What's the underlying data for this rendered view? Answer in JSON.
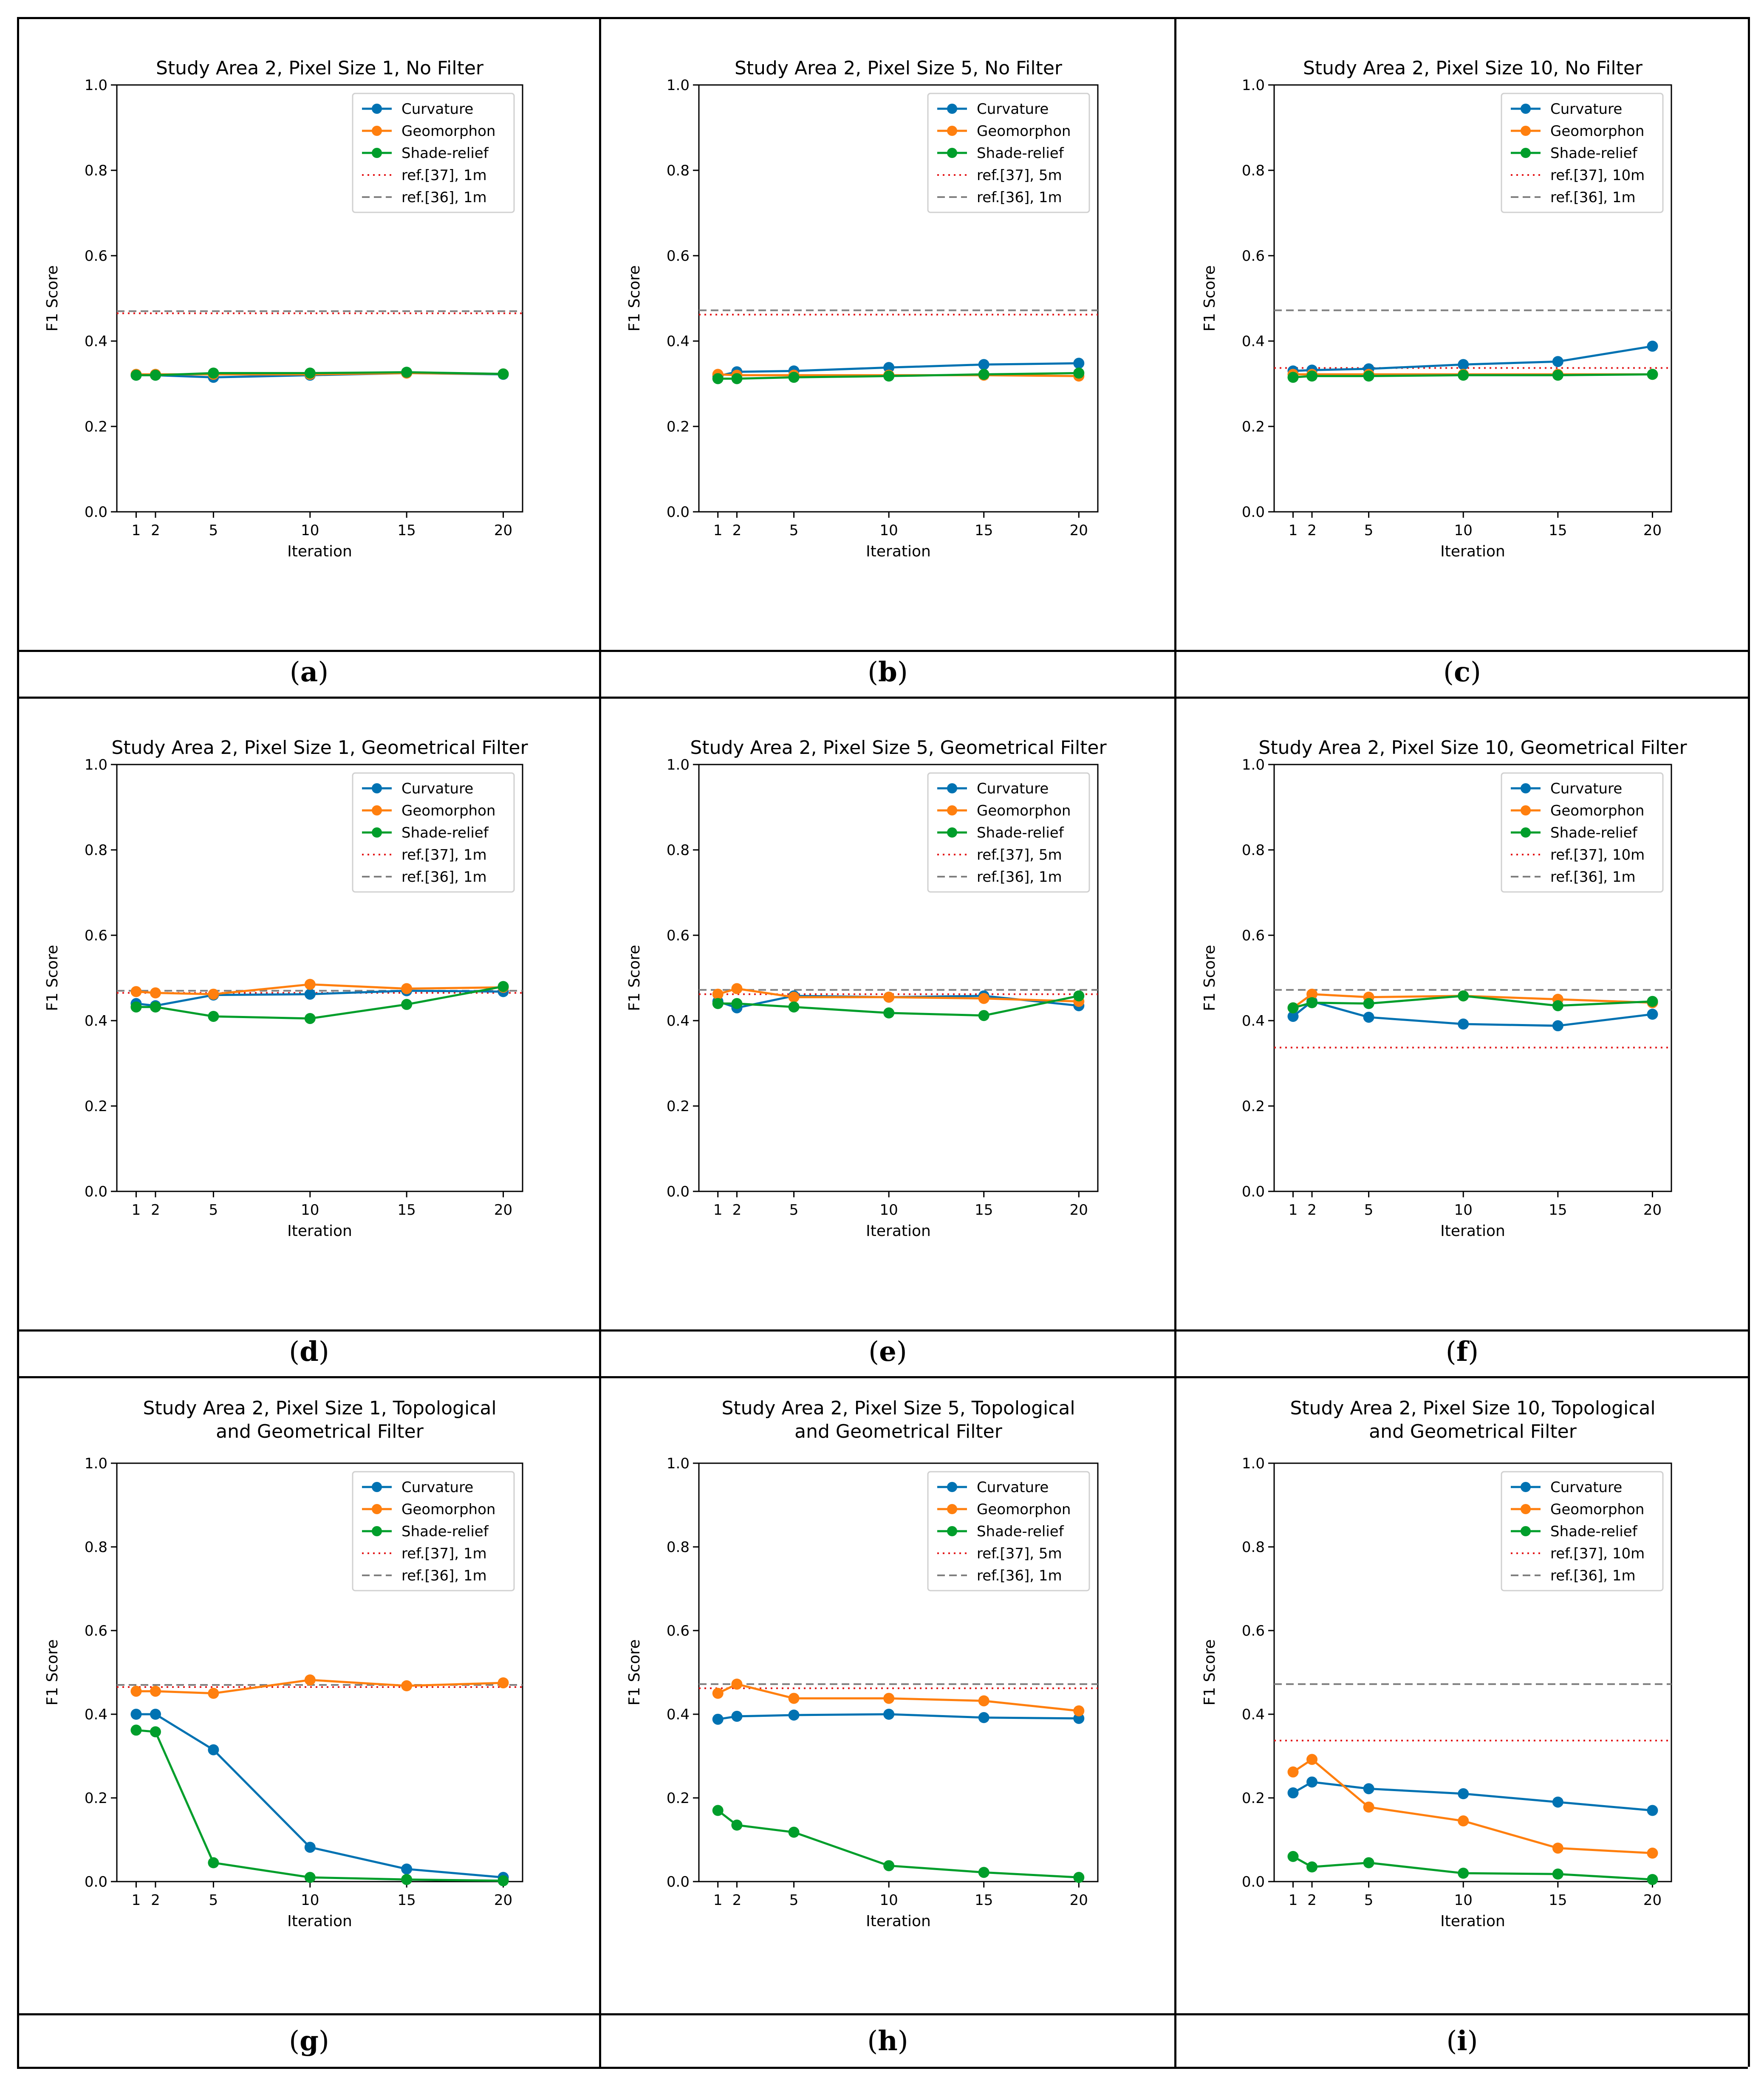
{
  "figure": {
    "captions": [
      "a",
      "b",
      "c",
      "d",
      "e",
      "f",
      "g",
      "h",
      "i"
    ]
  },
  "colors": {
    "curvature": "#0072b2",
    "geomorphon": "#ff7f0e",
    "shade_relief": "#009e2b",
    "ref37": "#e41a1c",
    "ref36": "#7f7f7f",
    "axis": "#000000"
  },
  "chart_data": [
    {
      "type": "line",
      "panel": "a",
      "title": [
        "Study Area 2, Pixel Size 1, No Filter"
      ],
      "xlabel": "Iteration",
      "ylabel": "F1 Score",
      "x": [
        1,
        2,
        5,
        10,
        15,
        20
      ],
      "xticks": [
        "1",
        "2",
        "5",
        "10",
        "15",
        "20"
      ],
      "yticks": [
        "0.0",
        "0.2",
        "0.4",
        "0.6",
        "0.8",
        "1.0"
      ],
      "ylim": [
        0,
        1
      ],
      "series": [
        {
          "name": "Curvature",
          "key": "curvature",
          "values": [
            0.32,
            0.32,
            0.315,
            0.32,
            0.325,
            0.322
          ]
        },
        {
          "name": "Geomorphon",
          "key": "geomorphon",
          "values": [
            0.322,
            0.322,
            0.322,
            0.322,
            0.325,
            0.323
          ]
        },
        {
          "name": "Shade-relief",
          "key": "shade_relief",
          "values": [
            0.32,
            0.32,
            0.325,
            0.325,
            0.327,
            0.323
          ]
        }
      ],
      "refs": [
        {
          "name": "ref.[37], 1m",
          "key": "ref37",
          "value": 0.465
        },
        {
          "name": "ref.[36], 1m",
          "key": "ref36",
          "value": 0.47
        }
      ],
      "legend": "top-right"
    },
    {
      "type": "line",
      "panel": "b",
      "title": [
        "Study Area 2, Pixel Size 5, No Filter"
      ],
      "xlabel": "Iteration",
      "ylabel": "F1 Score",
      "x": [
        1,
        2,
        5,
        10,
        15,
        20
      ],
      "xticks": [
        "1",
        "2",
        "5",
        "10",
        "15",
        "20"
      ],
      "yticks": [
        "0.0",
        "0.2",
        "0.4",
        "0.6",
        "0.8",
        "1.0"
      ],
      "ylim": [
        0,
        1
      ],
      "series": [
        {
          "name": "Curvature",
          "key": "curvature",
          "values": [
            0.318,
            0.328,
            0.33,
            0.338,
            0.345,
            0.348
          ]
        },
        {
          "name": "Geomorphon",
          "key": "geomorphon",
          "values": [
            0.322,
            0.32,
            0.32,
            0.32,
            0.32,
            0.318
          ]
        },
        {
          "name": "Shade-relief",
          "key": "shade_relief",
          "values": [
            0.312,
            0.312,
            0.315,
            0.318,
            0.322,
            0.325
          ]
        }
      ],
      "refs": [
        {
          "name": "ref.[37], 5m",
          "key": "ref37",
          "value": 0.462
        },
        {
          "name": "ref.[36], 1m",
          "key": "ref36",
          "value": 0.472
        }
      ],
      "legend": "top-right"
    },
    {
      "type": "line",
      "panel": "c",
      "title": [
        "Study Area 2, Pixel Size 10, No Filter"
      ],
      "xlabel": "Iteration",
      "ylabel": "F1 Score",
      "x": [
        1,
        2,
        5,
        10,
        15,
        20
      ],
      "xticks": [
        "1",
        "2",
        "5",
        "10",
        "15",
        "20"
      ],
      "yticks": [
        "0.0",
        "0.2",
        "0.4",
        "0.6",
        "0.8",
        "1.0"
      ],
      "ylim": [
        0,
        1
      ],
      "series": [
        {
          "name": "Curvature",
          "key": "curvature",
          "values": [
            0.33,
            0.332,
            0.335,
            0.345,
            0.352,
            0.388
          ]
        },
        {
          "name": "Geomorphon",
          "key": "geomorphon",
          "values": [
            0.322,
            0.322,
            0.322,
            0.322,
            0.322,
            0.322
          ]
        },
        {
          "name": "Shade-relief",
          "key": "shade_relief",
          "values": [
            0.315,
            0.318,
            0.318,
            0.32,
            0.32,
            0.322
          ]
        }
      ],
      "refs": [
        {
          "name": "ref.[37], 10m",
          "key": "ref37",
          "value": 0.337
        },
        {
          "name": "ref.[36], 1m",
          "key": "ref36",
          "value": 0.472
        }
      ],
      "legend": "top-right"
    },
    {
      "type": "line",
      "panel": "d",
      "title": [
        "Study Area 2, Pixel Size 1, Geometrical Filter"
      ],
      "xlabel": "Iteration",
      "ylabel": "F1 Score",
      "x": [
        1,
        2,
        5,
        10,
        15,
        20
      ],
      "xticks": [
        "1",
        "2",
        "5",
        "10",
        "15",
        "20"
      ],
      "yticks": [
        "0.0",
        "0.2",
        "0.4",
        "0.6",
        "0.8",
        "1.0"
      ],
      "ylim": [
        0,
        1
      ],
      "series": [
        {
          "name": "Curvature",
          "key": "curvature",
          "values": [
            0.44,
            0.435,
            0.46,
            0.462,
            0.47,
            0.468
          ]
        },
        {
          "name": "Geomorphon",
          "key": "geomorphon",
          "values": [
            0.468,
            0.465,
            0.462,
            0.485,
            0.475,
            0.478
          ]
        },
        {
          "name": "Shade-relief",
          "key": "shade_relief",
          "values": [
            0.432,
            0.432,
            0.41,
            0.405,
            0.438,
            0.48
          ]
        }
      ],
      "refs": [
        {
          "name": "ref.[37], 1m",
          "key": "ref37",
          "value": 0.465
        },
        {
          "name": "ref.[36], 1m",
          "key": "ref36",
          "value": 0.47
        }
      ],
      "legend": "top-right"
    },
    {
      "type": "line",
      "panel": "e",
      "title": [
        "Study Area 2, Pixel Size 5, Geometrical Filter"
      ],
      "xlabel": "Iteration",
      "ylabel": "F1 Score",
      "x": [
        1,
        2,
        5,
        10,
        15,
        20
      ],
      "xticks": [
        "1",
        "2",
        "5",
        "10",
        "15",
        "20"
      ],
      "yticks": [
        "0.0",
        "0.2",
        "0.4",
        "0.6",
        "0.8",
        "1.0"
      ],
      "ylim": [
        0,
        1
      ],
      "series": [
        {
          "name": "Curvature",
          "key": "curvature",
          "values": [
            0.445,
            0.43,
            0.458,
            0.455,
            0.458,
            0.435
          ]
        },
        {
          "name": "Geomorphon",
          "key": "geomorphon",
          "values": [
            0.462,
            0.475,
            0.455,
            0.455,
            0.452,
            0.445
          ]
        },
        {
          "name": "Shade-relief",
          "key": "shade_relief",
          "values": [
            0.44,
            0.44,
            0.432,
            0.418,
            0.412,
            0.458
          ]
        }
      ],
      "refs": [
        {
          "name": "ref.[37], 5m",
          "key": "ref37",
          "value": 0.462
        },
        {
          "name": "ref.[36], 1m",
          "key": "ref36",
          "value": 0.472
        }
      ],
      "legend": "top-right"
    },
    {
      "type": "line",
      "panel": "f",
      "title": [
        "Study Area 2, Pixel Size 10, Geometrical Filter"
      ],
      "xlabel": "Iteration",
      "ylabel": "F1 Score",
      "x": [
        1,
        2,
        5,
        10,
        15,
        20
      ],
      "xticks": [
        "1",
        "2",
        "5",
        "10",
        "15",
        "20"
      ],
      "yticks": [
        "0.0",
        "0.2",
        "0.4",
        "0.6",
        "0.8",
        "1.0"
      ],
      "ylim": [
        0,
        1
      ],
      "series": [
        {
          "name": "Curvature",
          "key": "curvature",
          "values": [
            0.41,
            0.445,
            0.408,
            0.392,
            0.388,
            0.415
          ]
        },
        {
          "name": "Geomorphon",
          "key": "geomorphon",
          "values": [
            0.43,
            0.462,
            0.455,
            0.458,
            0.45,
            0.442
          ]
        },
        {
          "name": "Shade-relief",
          "key": "shade_relief",
          "values": [
            0.43,
            0.442,
            0.44,
            0.458,
            0.435,
            0.445
          ]
        }
      ],
      "refs": [
        {
          "name": "ref.[37], 10m",
          "key": "ref37",
          "value": 0.337
        },
        {
          "name": "ref.[36], 1m",
          "key": "ref36",
          "value": 0.472
        }
      ],
      "legend": "top-right"
    },
    {
      "type": "line",
      "panel": "g",
      "title": [
        "Study Area 2, Pixel Size 1, Topological",
        "and Geometrical Filter"
      ],
      "xlabel": "Iteration",
      "ylabel": "F1 Score",
      "x": [
        1,
        2,
        5,
        10,
        15,
        20
      ],
      "xticks": [
        "1",
        "2",
        "5",
        "10",
        "15",
        "20"
      ],
      "yticks": [
        "0.0",
        "0.2",
        "0.4",
        "0.6",
        "0.8",
        "1.0"
      ],
      "ylim": [
        0,
        1
      ],
      "series": [
        {
          "name": "Curvature",
          "key": "curvature",
          "values": [
            0.4,
            0.4,
            0.315,
            0.082,
            0.03,
            0.01
          ]
        },
        {
          "name": "Geomorphon",
          "key": "geomorphon",
          "values": [
            0.455,
            0.455,
            0.45,
            0.482,
            0.468,
            0.475
          ]
        },
        {
          "name": "Shade-relief",
          "key": "shade_relief",
          "values": [
            0.362,
            0.358,
            0.045,
            0.01,
            0.005,
            0.002
          ]
        }
      ],
      "refs": [
        {
          "name": "ref.[37], 1m",
          "key": "ref37",
          "value": 0.465
        },
        {
          "name": "ref.[36], 1m",
          "key": "ref36",
          "value": 0.47
        }
      ],
      "legend": "top-right"
    },
    {
      "type": "line",
      "panel": "h",
      "title": [
        "Study Area 2, Pixel Size 5, Topological",
        "and Geometrical Filter"
      ],
      "xlabel": "Iteration",
      "ylabel": "F1 Score",
      "x": [
        1,
        2,
        5,
        10,
        15,
        20
      ],
      "xticks": [
        "1",
        "2",
        "5",
        "10",
        "15",
        "20"
      ],
      "yticks": [
        "0.0",
        "0.2",
        "0.4",
        "0.6",
        "0.8",
        "1.0"
      ],
      "ylim": [
        0,
        1
      ],
      "series": [
        {
          "name": "Curvature",
          "key": "curvature",
          "values": [
            0.388,
            0.395,
            0.398,
            0.4,
            0.392,
            0.39
          ]
        },
        {
          "name": "Geomorphon",
          "key": "geomorphon",
          "values": [
            0.45,
            0.472,
            0.438,
            0.438,
            0.432,
            0.408
          ]
        },
        {
          "name": "Shade-relief",
          "key": "shade_relief",
          "values": [
            0.17,
            0.135,
            0.118,
            0.038,
            0.022,
            0.01
          ]
        }
      ],
      "refs": [
        {
          "name": "ref.[37], 5m",
          "key": "ref37",
          "value": 0.462
        },
        {
          "name": "ref.[36], 1m",
          "key": "ref36",
          "value": 0.472
        }
      ],
      "legend": "top-right"
    },
    {
      "type": "line",
      "panel": "i",
      "title": [
        "Study Area 2, Pixel Size 10, Topological",
        "and Geometrical Filter"
      ],
      "xlabel": "Iteration",
      "ylabel": "F1 Score",
      "x": [
        1,
        2,
        5,
        10,
        15,
        20
      ],
      "xticks": [
        "1",
        "2",
        "5",
        "10",
        "15",
        "20"
      ],
      "yticks": [
        "0.0",
        "0.2",
        "0.4",
        "0.6",
        "0.8",
        "1.0"
      ],
      "ylim": [
        0,
        1
      ],
      "series": [
        {
          "name": "Curvature",
          "key": "curvature",
          "values": [
            0.212,
            0.238,
            0.222,
            0.21,
            0.19,
            0.17
          ]
        },
        {
          "name": "Geomorphon",
          "key": "geomorphon",
          "values": [
            0.262,
            0.292,
            0.178,
            0.145,
            0.08,
            0.068
          ]
        },
        {
          "name": "Shade-relief",
          "key": "shade_relief",
          "values": [
            0.06,
            0.035,
            0.045,
            0.02,
            0.018,
            0.005
          ]
        }
      ],
      "refs": [
        {
          "name": "ref.[37], 10m",
          "key": "ref37",
          "value": 0.337
        },
        {
          "name": "ref.[36], 1m",
          "key": "ref36",
          "value": 0.472
        }
      ],
      "legend": "top-right"
    }
  ]
}
